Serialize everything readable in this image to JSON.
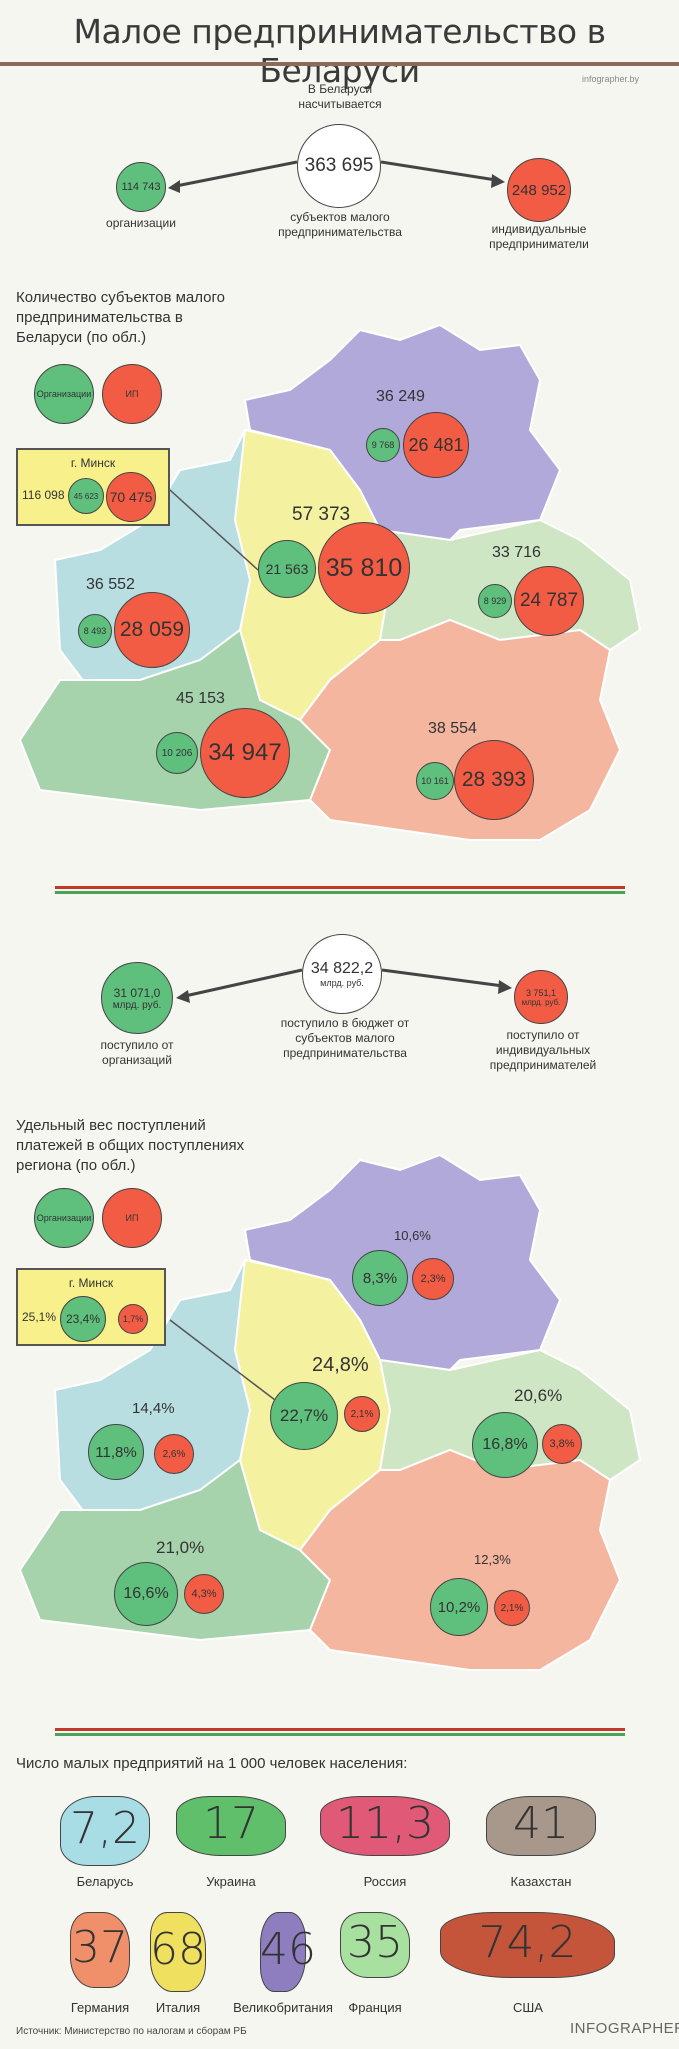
{
  "header": {
    "title": "Малое предпринимательство в Беларуси",
    "site": "infographer.by"
  },
  "total": {
    "intro": "В Беларуси насчитывается",
    "value": "363 695",
    "caption": "субъектов малого предпринимательства",
    "org_value": "114 743",
    "org_label": "организации",
    "ip_value": "248 952",
    "ip_label": "индивидуальные предприниматели"
  },
  "map1": {
    "heading": "Количество субъектов малого предпринимательства в Беларуси (по обл.)",
    "legend_org": "Организации",
    "legend_ip": "ИП",
    "minsk": {
      "label": "г. Минск",
      "total": "116 098",
      "org": "45 623",
      "ip": "70 475"
    },
    "regions": [
      {
        "name": "vitebsk",
        "total": "36 249",
        "org": "9 768",
        "ip": "26 481"
      },
      {
        "name": "minsk-obl",
        "total": "57 373",
        "org": "21 563",
        "ip": "35 810"
      },
      {
        "name": "mogilev",
        "total": "33 716",
        "org": "8 929",
        "ip": "24 787"
      },
      {
        "name": "grodno",
        "total": "36 552",
        "org": "8 493",
        "ip": "28 059"
      },
      {
        "name": "brest",
        "total": "45 153",
        "org": "10 206",
        "ip": "34 947"
      },
      {
        "name": "gomel",
        "total": "38 554",
        "org": "10 161",
        "ip": "28 393"
      }
    ]
  },
  "budget": {
    "value": "34 822,2",
    "unit": "млрд. руб.",
    "caption": "поступило в бюджет от субъектов малого предпринимательства",
    "org_value": "31 071,0",
    "org_unit": "млрд. руб.",
    "org_label": "поступило от организаций",
    "ip_value": "3 751,1",
    "ip_unit": "млрд. руб.",
    "ip_label": "поступило от индивидуальных предпринимателей"
  },
  "map2": {
    "heading": "Удельный вес поступлений платежей в общих поступлениях региона (по обл.)",
    "legend_org": "Организации",
    "legend_ip": "ИП",
    "minsk": {
      "label": "г. Минск",
      "total": "25,1%",
      "org": "23,4%",
      "ip": "1,7%"
    },
    "regions": [
      {
        "name": "vitebsk",
        "total": "10,6%",
        "org": "8,3%",
        "ip": "2,3%"
      },
      {
        "name": "minsk-obl",
        "total": "24,8%",
        "org": "22,7%",
        "ip": "2,1%"
      },
      {
        "name": "mogilev",
        "total": "20,6%",
        "org": "16,8%",
        "ip": "3,8%"
      },
      {
        "name": "grodno",
        "total": "14,4%",
        "org": "11,8%",
        "ip": "2,6%"
      },
      {
        "name": "brest",
        "total": "21,0%",
        "org": "16,6%",
        "ip": "4,3%"
      },
      {
        "name": "gomel",
        "total": "12,3%",
        "org": "10,2%",
        "ip": "2,1%"
      }
    ]
  },
  "countries": {
    "heading": "Число малых предприятий на 1 000 человек населения:",
    "items": [
      {
        "name": "Беларусь",
        "value": "7,2",
        "color": "#a8dde6"
      },
      {
        "name": "Украина",
        "value": "17",
        "color": "#5fbf6a"
      },
      {
        "name": "Россия",
        "value": "11,3",
        "color": "#e05a78"
      },
      {
        "name": "Казахстан",
        "value": "41",
        "color": "#a8988c"
      },
      {
        "name": "Германия",
        "value": "37",
        "color": "#f0906a"
      },
      {
        "name": "Италия",
        "value": "68",
        "color": "#f0e060"
      },
      {
        "name": "Великобритания",
        "value": "46",
        "color": "#8e7ec0"
      },
      {
        "name": "Франция",
        "value": "35",
        "color": "#a8e0a0"
      },
      {
        "name": "США",
        "value": "74,2",
        "color": "#c4553a"
      }
    ]
  },
  "footer": {
    "source": "Источник: Министерство по налогам и сборам РБ",
    "brand": "INFOGRAPHER.by"
  }
}
